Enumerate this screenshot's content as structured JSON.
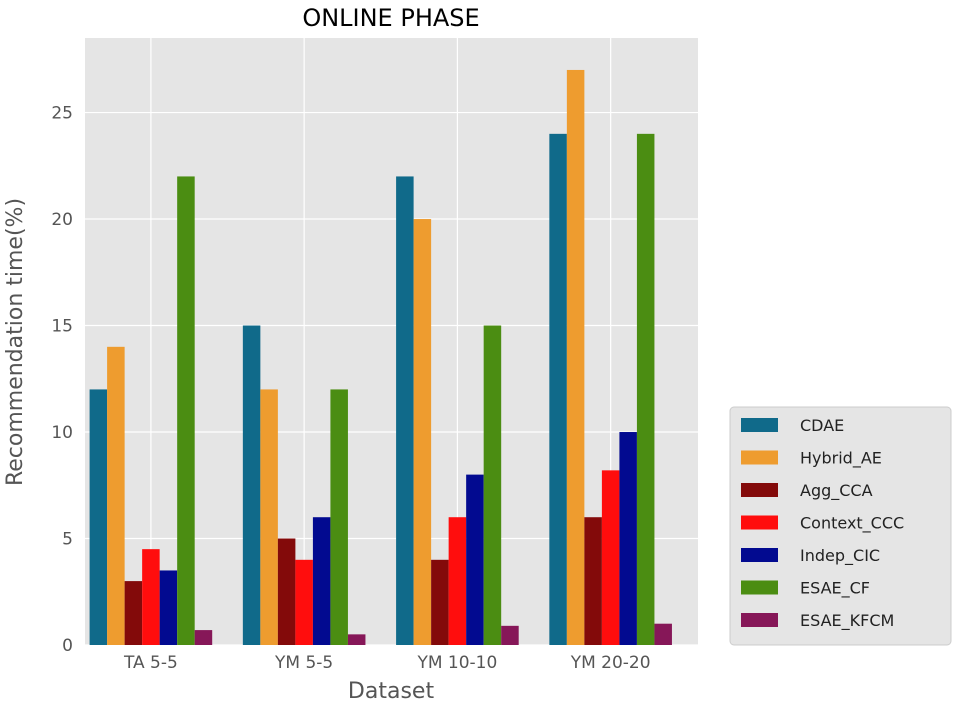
{
  "chart_data": {
    "type": "bar",
    "title": "ONLINE PHASE",
    "xlabel": "Dataset",
    "ylabel": "Recommendation time(%)",
    "categories": [
      "TA 5-5",
      "YM 5-5",
      "YM 10-10",
      "YM 20-20"
    ],
    "ylim": [
      0,
      28.5
    ],
    "yticks": [
      0,
      5,
      10,
      15,
      20,
      25
    ],
    "grid": true,
    "legend_position": "right",
    "series": [
      {
        "name": "CDAE",
        "color": "#106a8a",
        "values": [
          12,
          15,
          22,
          24
        ]
      },
      {
        "name": "Hybrid_AE",
        "color": "#ee9c2f",
        "values": [
          14,
          12,
          20,
          27
        ]
      },
      {
        "name": "Agg_CCA",
        "color": "#830a0a",
        "values": [
          3,
          5,
          4,
          6
        ]
      },
      {
        "name": "Context_CCC",
        "color": "#ff0d0d",
        "values": [
          4.5,
          4,
          6,
          8.2
        ]
      },
      {
        "name": "Indep_CIC",
        "color": "#020a90",
        "values": [
          3.5,
          6,
          8,
          10
        ]
      },
      {
        "name": "ESAE_CF",
        "color": "#4b8d12",
        "values": [
          22,
          12,
          15,
          24
        ]
      },
      {
        "name": "ESAE_KFCM",
        "color": "#861758",
        "values": [
          0.7,
          0.5,
          0.9,
          1.0
        ]
      }
    ]
  }
}
